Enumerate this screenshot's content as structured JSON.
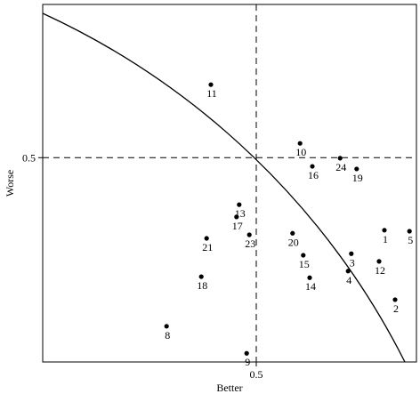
{
  "chart_data": {
    "type": "scatter",
    "x_label": "Better",
    "y_label": "Worse",
    "xlim": [
      0.1,
      0.8
    ],
    "ylim": [
      0.1,
      0.8
    ],
    "xticks": [
      0.5
    ],
    "yticks": [
      0.5
    ],
    "color": "#000000",
    "labels": [
      "1",
      "2",
      "3",
      "4",
      "5",
      "8",
      "9",
      "10",
      "11",
      "12",
      "13",
      "14",
      "15",
      "16",
      "17",
      "18",
      "19",
      "20",
      "21",
      "23",
      "24"
    ],
    "x": [
      0.74,
      0.76,
      0.678,
      0.672,
      0.787,
      0.332,
      0.482,
      0.582,
      0.415,
      0.73,
      0.468,
      0.6,
      0.588,
      0.605,
      0.463,
      0.397,
      0.688,
      0.568,
      0.407,
      0.487,
      0.657
    ],
    "values": [
      0.358,
      0.222,
      0.312,
      0.278,
      0.356,
      0.17,
      0.117,
      0.528,
      0.643,
      0.297,
      0.408,
      0.265,
      0.309,
      0.483,
      0.384,
      0.267,
      0.478,
      0.352,
      0.342,
      0.349,
      0.499
    ]
  }
}
